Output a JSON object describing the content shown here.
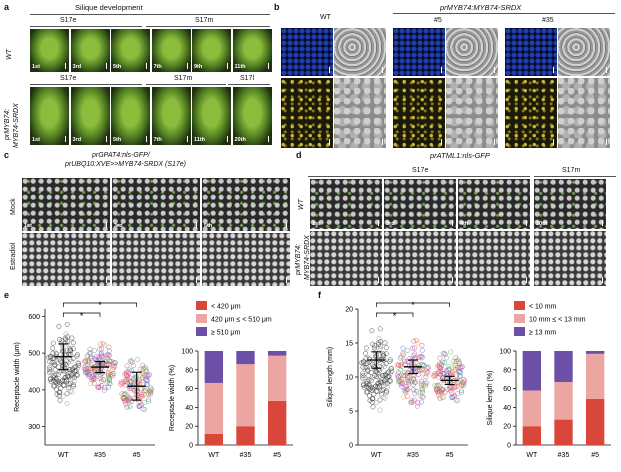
{
  "panels": {
    "a": {
      "label": "a",
      "title": "Silique development",
      "row1_label": "WT",
      "row2_label_line1": "prMYB74:",
      "row2_label_line2": "MYB74-SRDX",
      "row1_stages": [
        "S17e",
        "S17m"
      ],
      "row2_stages": [
        "S17e",
        "S17m",
        "S17l"
      ],
      "row1_numbers": [
        "1st",
        "3rd",
        "5th",
        "7th",
        "9th",
        "11th"
      ],
      "row2_numbers": [
        "1st",
        "3rd",
        "5th",
        "7th",
        "11th",
        "20th"
      ]
    },
    "b": {
      "label": "b",
      "col_wt": "WT",
      "col_group": "prMYB74:MYB74-SRDX",
      "col_5": "#5",
      "col_35": "#35"
    },
    "c": {
      "label": "c",
      "title_line1": "prGPAT4:nls-GFP/",
      "title_line2": "prUBQ10:XVE>>MYB74-SRDX (S17e)",
      "row1_label": "Mock",
      "row2_label": "Estradiol",
      "numbers": [
        "1st",
        "3rd",
        "5th"
      ]
    },
    "d": {
      "label": "d",
      "title": "prATML1:nls-GFP",
      "stage1": "S17e",
      "stage2": "S17m",
      "row1_label": "WT",
      "row2_label_line1": "prMYB74:",
      "row2_label_line2": "MYB74-SRDX",
      "numbers": [
        "1st",
        "3rd",
        "4th",
        "10th"
      ]
    },
    "e": {
      "label": "e",
      "ylabel_left": "Receptacle width (μm)",
      "ylabel_right": "Receptacle width (%)",
      "significance": "*",
      "legend": [
        "< 420 μm",
        "420 μm ≤  < 510 μm",
        "≥ 510 μm"
      ]
    },
    "f": {
      "label": "f",
      "ylabel_left": "Silique length (mm)",
      "ylabel_right": "Silique length (%)",
      "significance": "*",
      "legend": [
        "< 10 mm",
        "10 mm ≤  < 13 mm",
        "≥ 13 mm"
      ]
    }
  },
  "colors": {
    "low": "#d9473b",
    "mid": "#eba6a1",
    "high": "#6c4fa6"
  },
  "chart_data": [
    {
      "id": "e-strip",
      "type": "scatter",
      "categories": [
        "WT",
        "#35",
        "#5"
      ],
      "ylabel": "Receptacle width (μm)",
      "ylim": [
        250,
        620
      ],
      "yticks": [
        300,
        400,
        500,
        600
      ],
      "means": [
        490,
        462,
        410
      ],
      "errors": [
        35,
        15,
        38
      ],
      "spread": [
        [
          330,
          600
        ],
        [
          390,
          560
        ],
        [
          310,
          520
        ]
      ]
    },
    {
      "id": "e-stack",
      "type": "bar",
      "categories": [
        "WT",
        "#35",
        "#5"
      ],
      "ylabel": "Receptacle width (%)",
      "ylim": [
        0,
        100
      ],
      "yticks": [
        0,
        20,
        40,
        60,
        80,
        100
      ],
      "series": [
        {
          "name": "< 420 μm",
          "values": [
            12,
            20,
            47
          ]
        },
        {
          "name": "420 μm ≤  < 510 μm",
          "values": [
            54,
            66,
            48
          ]
        },
        {
          "name": "≥ 510 μm",
          "values": [
            34,
            14,
            5
          ]
        }
      ]
    },
    {
      "id": "f-strip",
      "type": "scatter",
      "categories": [
        "WT",
        "#35",
        "#5"
      ],
      "ylabel": "Silique length (mm)",
      "ylim": [
        0,
        20
      ],
      "yticks": [
        0,
        5,
        10,
        15,
        20
      ],
      "means": [
        12.5,
        11.5,
        9.5
      ],
      "errors": [
        1.2,
        1.0,
        0.6
      ],
      "spread": [
        [
          3,
          18
        ],
        [
          4,
          17
        ],
        [
          5,
          16
        ]
      ]
    },
    {
      "id": "f-stack",
      "type": "bar",
      "categories": [
        "WT",
        "#35",
        "#5"
      ],
      "ylabel": "Silique length (%)",
      "ylim": [
        0,
        100
      ],
      "yticks": [
        0,
        20,
        40,
        60,
        80,
        100
      ],
      "series": [
        {
          "name": "< 10 mm",
          "values": [
            20,
            27,
            49
          ]
        },
        {
          "name": "10 mm ≤  < 13 mm",
          "values": [
            38,
            40,
            48
          ]
        },
        {
          "name": "≥ 13 mm",
          "values": [
            42,
            33,
            3
          ]
        }
      ]
    }
  ]
}
